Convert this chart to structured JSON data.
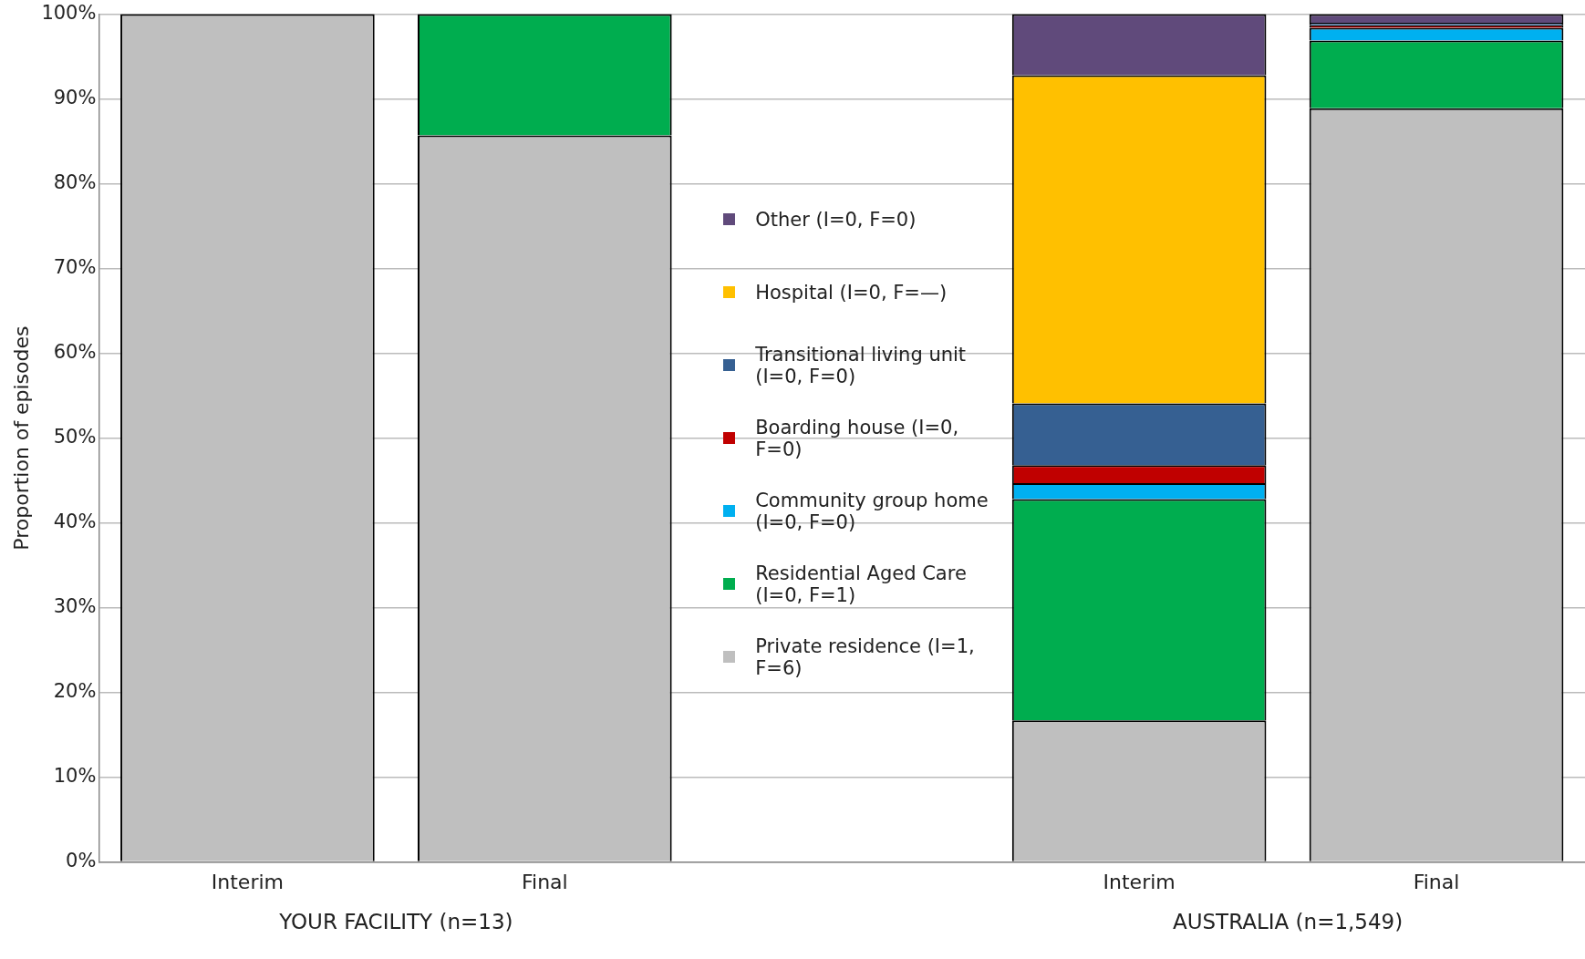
{
  "chart_data": {
    "type": "bar",
    "stacked": true,
    "ylabel": "Proportion of episodes",
    "categories": [
      "Interim",
      "Final",
      null,
      "Interim",
      "Final"
    ],
    "series": [
      {
        "name": "Private residence (I=1, F=6)",
        "color": "#bfbfbf",
        "values": [
          100,
          85.7,
          null,
          16.7,
          88.9
        ]
      },
      {
        "name": "Residential Aged Care (I=0, F=1)",
        "color": "#00ad4f",
        "values": [
          0,
          14.3,
          null,
          26.1,
          8.0
        ]
      },
      {
        "name": "Community group home (I=0, F=0)",
        "color": "#00b0f0",
        "values": [
          0,
          0,
          null,
          1.9,
          1.5
        ]
      },
      {
        "name": "Boarding house (I=0, F=0)",
        "color": "#c00000",
        "values": [
          0,
          0,
          null,
          2.1,
          0.3
        ]
      },
      {
        "name": "Transitional living unit (I=0, F=0)",
        "color": "#366092",
        "values": [
          0,
          0,
          null,
          7.3,
          0.3
        ]
      },
      {
        "name": "Hospital (I=0, F=—)",
        "color": "#ffc000",
        "values": [
          0,
          0,
          null,
          38.7,
          0
        ]
      },
      {
        "name": "Other (I=0, F=0)",
        "color": "#604a7b",
        "values": [
          0,
          0,
          null,
          7.2,
          1.0
        ]
      }
    ],
    "ylim": [
      0,
      100
    ],
    "yticks": [
      {
        "value": 0,
        "label": "0%"
      },
      {
        "value": 10,
        "label": "10%"
      },
      {
        "value": 20,
        "label": "20%"
      },
      {
        "value": 30,
        "label": "30%"
      },
      {
        "value": 40,
        "label": "40%"
      },
      {
        "value": 50,
        "label": "50%"
      },
      {
        "value": 60,
        "label": "60%"
      },
      {
        "value": 70,
        "label": "70%"
      },
      {
        "value": 80,
        "label": "80%"
      },
      {
        "value": 90,
        "label": "90%"
      },
      {
        "value": 100,
        "label": "100%"
      }
    ],
    "grid": "y",
    "legend": "center",
    "annotations": [
      "YOUR FACILITY (n=13)",
      "AUSTRALIA (n=1,549)"
    ]
  }
}
